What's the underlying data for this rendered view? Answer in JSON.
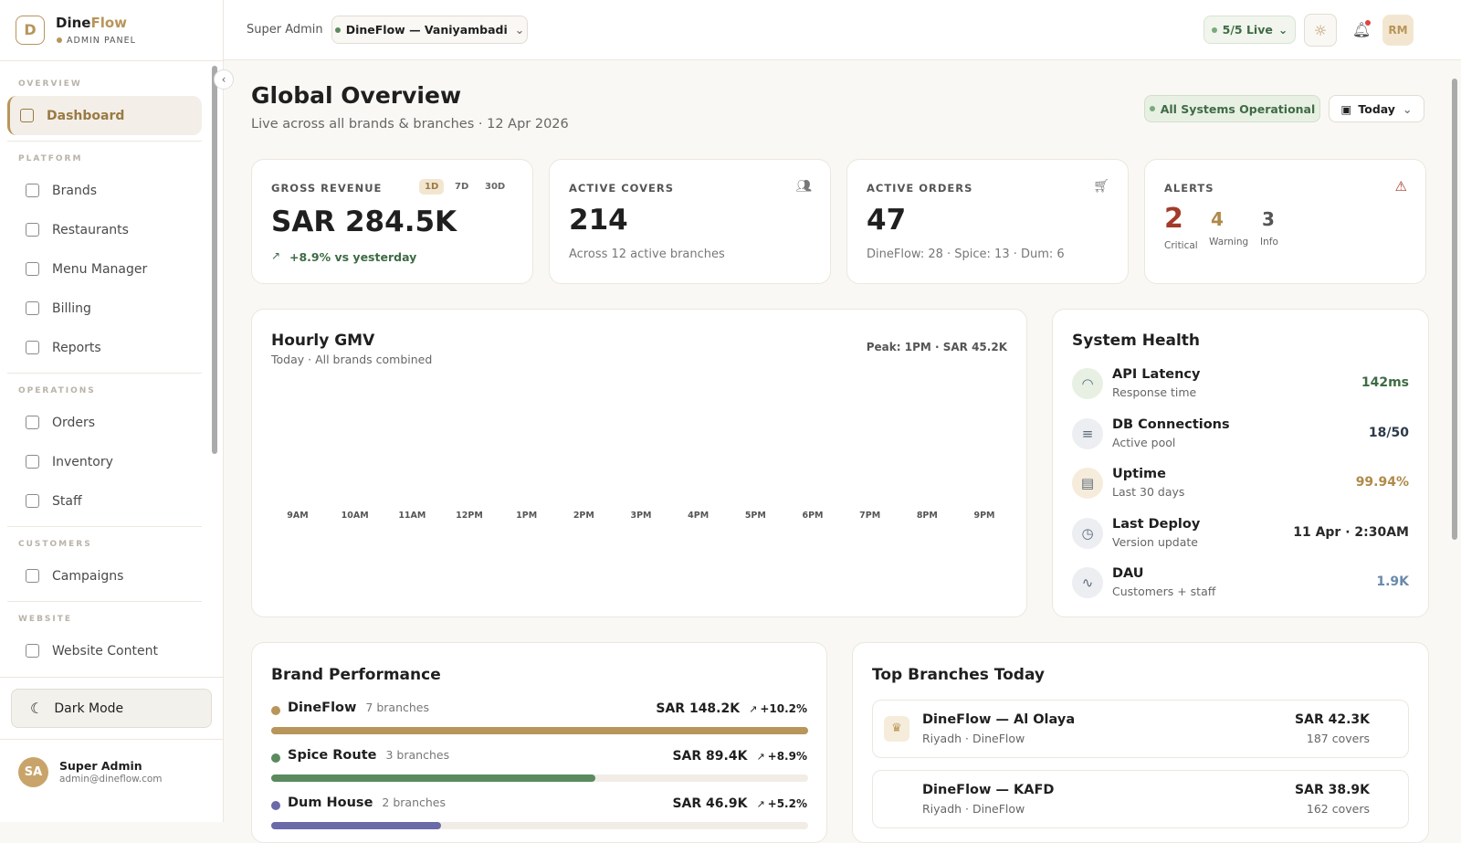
{
  "sidebar": {
    "brand_a": "Dine",
    "brand_b": "Flow",
    "brand_subtitle": "ADMIN PANEL",
    "sections": [
      {
        "title": "OVERVIEW",
        "items": [
          "Dashboard"
        ]
      },
      {
        "title": "PLATFORM",
        "items": [
          "Brands",
          "Restaurants",
          "Menu Manager",
          "Billing",
          "Reports"
        ]
      },
      {
        "title": "OPERATIONS",
        "items": [
          "Orders",
          "Inventory",
          "Staff"
        ]
      },
      {
        "title": "CUSTOMERS",
        "items": [
          "Campaigns"
        ]
      },
      {
        "title": "WEBSITE",
        "items": [
          "Website Content"
        ]
      }
    ],
    "dark_mode": "Dark Mode",
    "user": {
      "initials": "SA",
      "name": "Super Admin",
      "email": "admin@dineflow.com"
    }
  },
  "topbar": {
    "role": "Super Admin",
    "branch": "DineFlow — Vaniyambadi",
    "live": "5/5 Live",
    "avatar": "RM"
  },
  "header": {
    "title": "Global Overview",
    "subtitle": "Live across all brands & branches · 12 Apr 2026",
    "status": "All Systems Operational",
    "range": "Today"
  },
  "kpis": {
    "revenue": {
      "label": "GROSS REVENUE",
      "tabs": [
        "1D",
        "7D",
        "30D"
      ],
      "value": "SAR 284.5K",
      "change": "+8.9% vs yesterday"
    },
    "covers": {
      "label": "ACTIVE COVERS",
      "value": "214",
      "note": "Across 12 active branches"
    },
    "orders": {
      "label": "ACTIVE ORDERS",
      "value": "47",
      "note": "DineFlow: 28 · Spice: 13 · Dum: 6"
    },
    "alerts": {
      "label": "ALERTS",
      "items": [
        {
          "count": "2",
          "label": "Critical",
          "color": "#a33a2a"
        },
        {
          "count": "4",
          "label": "Warning",
          "color": "#b08a4a"
        },
        {
          "count": "3",
          "label": "Info",
          "color": "#555555"
        }
      ]
    }
  },
  "gmv": {
    "title": "Hourly GMV",
    "subtitle": "Today · All brands combined",
    "peak": "Peak: 1PM · SAR 45.2K",
    "hours": [
      "9AM",
      "10AM",
      "11AM",
      "12PM",
      "1PM",
      "2PM",
      "3PM",
      "4PM",
      "5PM",
      "6PM",
      "7PM",
      "8PM",
      "9PM"
    ]
  },
  "health": {
    "title": "System Health",
    "items": [
      {
        "name": "API Latency",
        "sub": "Response time",
        "value": "142ms",
        "color": "#3e6b44"
      },
      {
        "name": "DB Connections",
        "sub": "Active pool",
        "value": "18/50",
        "color": "#2d3a4a"
      },
      {
        "name": "Uptime",
        "sub": "Last 30 days",
        "value": "99.94%",
        "color": "#b08a4a"
      },
      {
        "name": "Last Deploy",
        "sub": "Version update",
        "value": "11 Apr · 2:30AM",
        "color": "#2a2a2a"
      },
      {
        "name": "DAU",
        "sub": "Customers + staff",
        "value": "1.9K",
        "color": "#6a8aaa"
      }
    ]
  },
  "brands": {
    "title": "Brand Performance",
    "items": [
      {
        "name": "DineFlow",
        "branches": "7 branches",
        "revenue": {
          "value": 148200,
          "label": "SAR 148.2K"
        },
        "change": "+10.2%",
        "color": "#b8955a"
      },
      {
        "name": "Spice Route",
        "branches": "3 branches",
        "revenue": {
          "value": 89400,
          "label": "SAR 89.4K"
        },
        "change": "+8.9%",
        "color": "#5a8a5e"
      },
      {
        "name": "Dum House",
        "branches": "2 branches",
        "revenue": {
          "value": 46900,
          "label": "SAR 46.9K"
        },
        "change": "+5.2%",
        "color": "#6a6aa8"
      }
    ]
  },
  "top_branches": {
    "title": "Top Branches Today",
    "items": [
      {
        "name": "DineFlow — Al Olaya",
        "location": "Riyadh · DineFlow",
        "revenue": "SAR 42.3K",
        "covers": "187 covers"
      },
      {
        "name": "DineFlow — KAFD",
        "location": "Riyadh · DineFlow",
        "revenue": "SAR 38.9K",
        "covers": "162 covers"
      }
    ]
  }
}
